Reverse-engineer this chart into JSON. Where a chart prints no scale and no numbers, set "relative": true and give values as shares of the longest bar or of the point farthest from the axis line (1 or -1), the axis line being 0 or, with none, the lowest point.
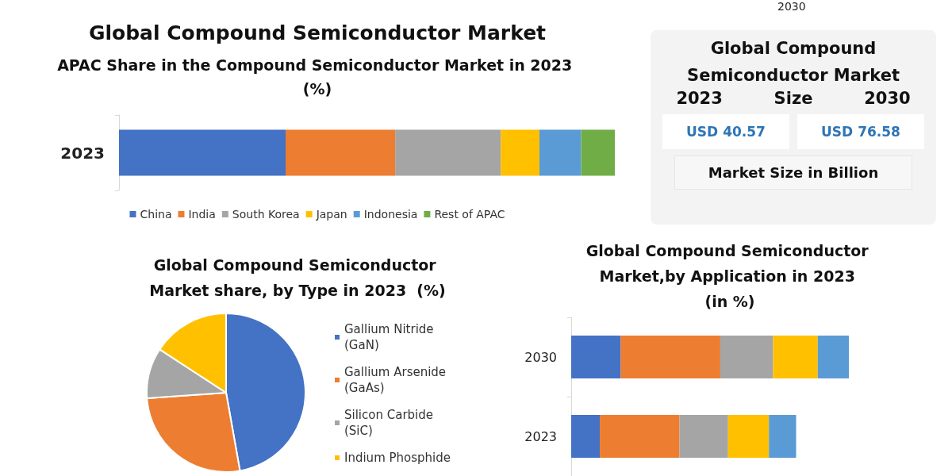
{
  "chart_data": [
    {
      "type": "bar",
      "title": "Global Compound Semiconductor Market",
      "subtitle": "APAC Share in the Compound Semiconductor Market in 2023 (%)",
      "orientation": "horizontal",
      "stacked": true,
      "relative": true,
      "categories": [
        "2023"
      ],
      "legend": "bottom",
      "series": [
        {
          "name": "China",
          "color": "#4472c4",
          "values": [
            0.336
          ]
        },
        {
          "name": "India",
          "color": "#ed7d31",
          "values": [
            0.221
          ]
        },
        {
          "name": "South Korea",
          "color": "#a5a5a5",
          "values": [
            0.213
          ]
        },
        {
          "name": "Japan",
          "color": "#ffc000",
          "values": [
            0.078
          ]
        },
        {
          "name": "Indonesia",
          "color": "#5b9bd5",
          "values": [
            0.084
          ]
        },
        {
          "name": "Rest of APAC",
          "color": "#70ad47",
          "values": [
            0.068
          ]
        }
      ]
    },
    {
      "type": "other",
      "title": "Global Compound Semiconductor Market",
      "subtitle": "Size",
      "categories": [
        "2023",
        "2030"
      ],
      "values": [
        40.57,
        76.58
      ],
      "value_labels": [
        "USD 40.57",
        "USD 76.58"
      ],
      "annotations": [
        "Market Size in Billion",
        "2030"
      ]
    },
    {
      "type": "pie",
      "title": "Global Compound Semiconductor Market share, by Type in 2023  (%)",
      "legend": "right",
      "categories": [
        "Gallium Nitride (GaN)",
        "Gallium Arsenide (GaAs)",
        "Silicon Carbide (SiC)",
        "Indium Phosphide"
      ],
      "values": [
        47.2,
        26.7,
        10.3,
        15.8
      ],
      "colors": [
        "#4472c4",
        "#ed7d31",
        "#a5a5a5",
        "#ffc000"
      ]
    },
    {
      "type": "bar",
      "title": "Global Compound Semiconductor Market,by Application in 2023 (in %)",
      "orientation": "horizontal",
      "stacked": true,
      "relative": true,
      "categories": [
        "2030",
        "2023"
      ],
      "series": [
        {
          "color": "#4472c4",
          "values": [
            0.178,
            0.103
          ]
        },
        {
          "color": "#ed7d31",
          "values": [
            0.359,
            0.287
          ]
        },
        {
          "color": "#a5a5a5",
          "values": [
            0.19,
            0.175
          ]
        },
        {
          "color": "#ffc000",
          "values": [
            0.161,
            0.147
          ]
        },
        {
          "color": "#5b9bd5",
          "values": [
            0.112,
            0.098
          ]
        }
      ]
    }
  ]
}
